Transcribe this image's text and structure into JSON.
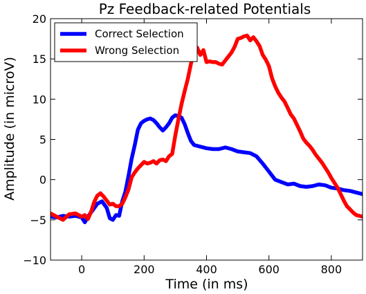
{
  "chart_data": {
    "type": "line",
    "title": "Pz Feedback-related Potentials",
    "xlabel": "Time (in ms)",
    "ylabel": "Amplitude (in microV)",
    "xlim": [
      -100,
      900
    ],
    "ylim": [
      -10,
      20
    ],
    "xticks": [
      0,
      200,
      400,
      600,
      800
    ],
    "yticks": [
      -10,
      -5,
      0,
      5,
      10,
      15,
      20
    ],
    "grid": false,
    "legend_position": "top-left",
    "series": [
      {
        "name": "Correct Selection",
        "color": "#0000ff",
        "x": [
          -100,
          -80,
          -60,
          -40,
          -20,
          0,
          10,
          20,
          35,
          50,
          65,
          80,
          90,
          100,
          110,
          120,
          130,
          140,
          150,
          160,
          170,
          180,
          190,
          200,
          210,
          220,
          230,
          240,
          250,
          260,
          270,
          280,
          290,
          300,
          310,
          320,
          330,
          340,
          350,
          360,
          380,
          400,
          420,
          440,
          460,
          480,
          500,
          520,
          540,
          560,
          580,
          600,
          620,
          640,
          660,
          680,
          700,
          720,
          740,
          760,
          780,
          800,
          820,
          840,
          860,
          880,
          900
        ],
        "y": [
          -4.6,
          -4.7,
          -4.5,
          -4.6,
          -4.5,
          -4.7,
          -5.3,
          -4.6,
          -3.8,
          -3.0,
          -2.7,
          -3.5,
          -4.8,
          -5.0,
          -4.4,
          -4.5,
          -2.7,
          -1.5,
          0.5,
          2.6,
          4.3,
          6.2,
          7.0,
          7.3,
          7.5,
          7.6,
          7.4,
          7.0,
          6.5,
          6.1,
          6.5,
          7.0,
          7.7,
          8.0,
          7.9,
          7.7,
          6.9,
          5.8,
          4.8,
          4.3,
          4.1,
          3.9,
          3.8,
          3.8,
          4.0,
          3.8,
          3.5,
          3.4,
          3.3,
          2.9,
          2.0,
          1.0,
          0.0,
          -0.3,
          -0.6,
          -0.5,
          -0.8,
          -0.9,
          -0.8,
          -0.6,
          -0.7,
          -1.0,
          -1.1,
          -1.3,
          -1.4,
          -1.6,
          -1.8
        ]
      },
      {
        "name": "Wrong Selection",
        "color": "#ff0000",
        "x": [
          -100,
          -80,
          -60,
          -40,
          -20,
          0,
          10,
          20,
          30,
          40,
          50,
          60,
          70,
          80,
          90,
          100,
          110,
          120,
          130,
          140,
          150,
          160,
          170,
          180,
          190,
          200,
          210,
          220,
          230,
          240,
          250,
          260,
          270,
          280,
          290,
          300,
          310,
          320,
          330,
          340,
          350,
          360,
          370,
          380,
          390,
          400,
          410,
          420,
          430,
          440,
          450,
          460,
          470,
          480,
          490,
          500,
          510,
          520,
          530,
          540,
          550,
          560,
          570,
          580,
          590,
          600,
          610,
          620,
          630,
          640,
          650,
          660,
          670,
          680,
          690,
          700,
          710,
          720,
          730,
          740,
          750,
          760,
          770,
          780,
          790,
          800,
          810,
          820,
          830,
          840,
          850,
          860,
          870,
          880,
          890,
          900
        ],
        "y": [
          -4.2,
          -4.6,
          -5.0,
          -4.3,
          -4.2,
          -4.6,
          -4.4,
          -4.9,
          -4.0,
          -2.8,
          -2.0,
          -1.7,
          -2.1,
          -2.6,
          -3.1,
          -3.0,
          -3.3,
          -3.3,
          -3.0,
          -2.2,
          -1.2,
          0.3,
          0.9,
          1.4,
          1.8,
          2.2,
          2.0,
          2.1,
          2.3,
          2.0,
          2.4,
          2.5,
          2.3,
          2.9,
          3.2,
          5.5,
          7.5,
          9.4,
          11.0,
          12.5,
          14.4,
          16.0,
          16.4,
          15.5,
          16.1,
          14.6,
          14.7,
          14.6,
          14.6,
          14.4,
          14.3,
          14.8,
          15.3,
          15.8,
          16.5,
          17.5,
          17.6,
          17.8,
          17.9,
          17.3,
          17.7,
          17.2,
          16.6,
          15.5,
          14.9,
          14.1,
          12.6,
          11.6,
          10.8,
          10.2,
          9.7,
          8.9,
          8.1,
          7.6,
          6.8,
          6.0,
          5.1,
          4.6,
          4.2,
          3.7,
          3.1,
          2.6,
          2.1,
          1.5,
          0.9,
          0.2,
          -0.4,
          -1.0,
          -1.8,
          -2.6,
          -3.3,
          -3.7,
          -4.1,
          -4.4,
          -4.5,
          -4.6
        ]
      }
    ]
  }
}
